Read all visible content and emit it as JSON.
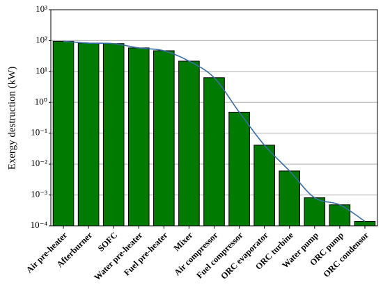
{
  "chart_data": {
    "type": "bar",
    "y_label": "Exergy destruction (kW)",
    "categories": [
      "Air pre-heater",
      "Afterburner",
      "SOFC",
      "Water pre-heater",
      "Fuel pre-heater",
      "Mixer",
      "Air compressor",
      "Fuel compressor",
      "ORC evaporator",
      "ORC turbine",
      "Water pump",
      "ORC pump",
      "ORC condensor"
    ],
    "values": [
      95,
      83,
      80,
      58,
      47,
      21.6,
      6.3,
      0.48,
      0.041,
      0.006,
      0.00081,
      0.00048,
      0.00014
    ],
    "color": "#007a00",
    "line_color": "#3a6ea5",
    "log_scale": true,
    "grid": true,
    "ylim": [
      0.0001,
      1000
    ],
    "yticks": [
      {
        "value": 0.0001,
        "label": "10⁻⁴"
      },
      {
        "value": 0.001,
        "label": "10⁻³"
      },
      {
        "value": 0.01,
        "label": "10⁻²"
      },
      {
        "value": 0.1,
        "label": "10⁻¹"
      },
      {
        "value": 1,
        "label": "10⁰"
      },
      {
        "value": 10,
        "label": "10¹"
      },
      {
        "value": 100,
        "label": "10²"
      },
      {
        "value": 1000,
        "label": "10³"
      }
    ]
  }
}
